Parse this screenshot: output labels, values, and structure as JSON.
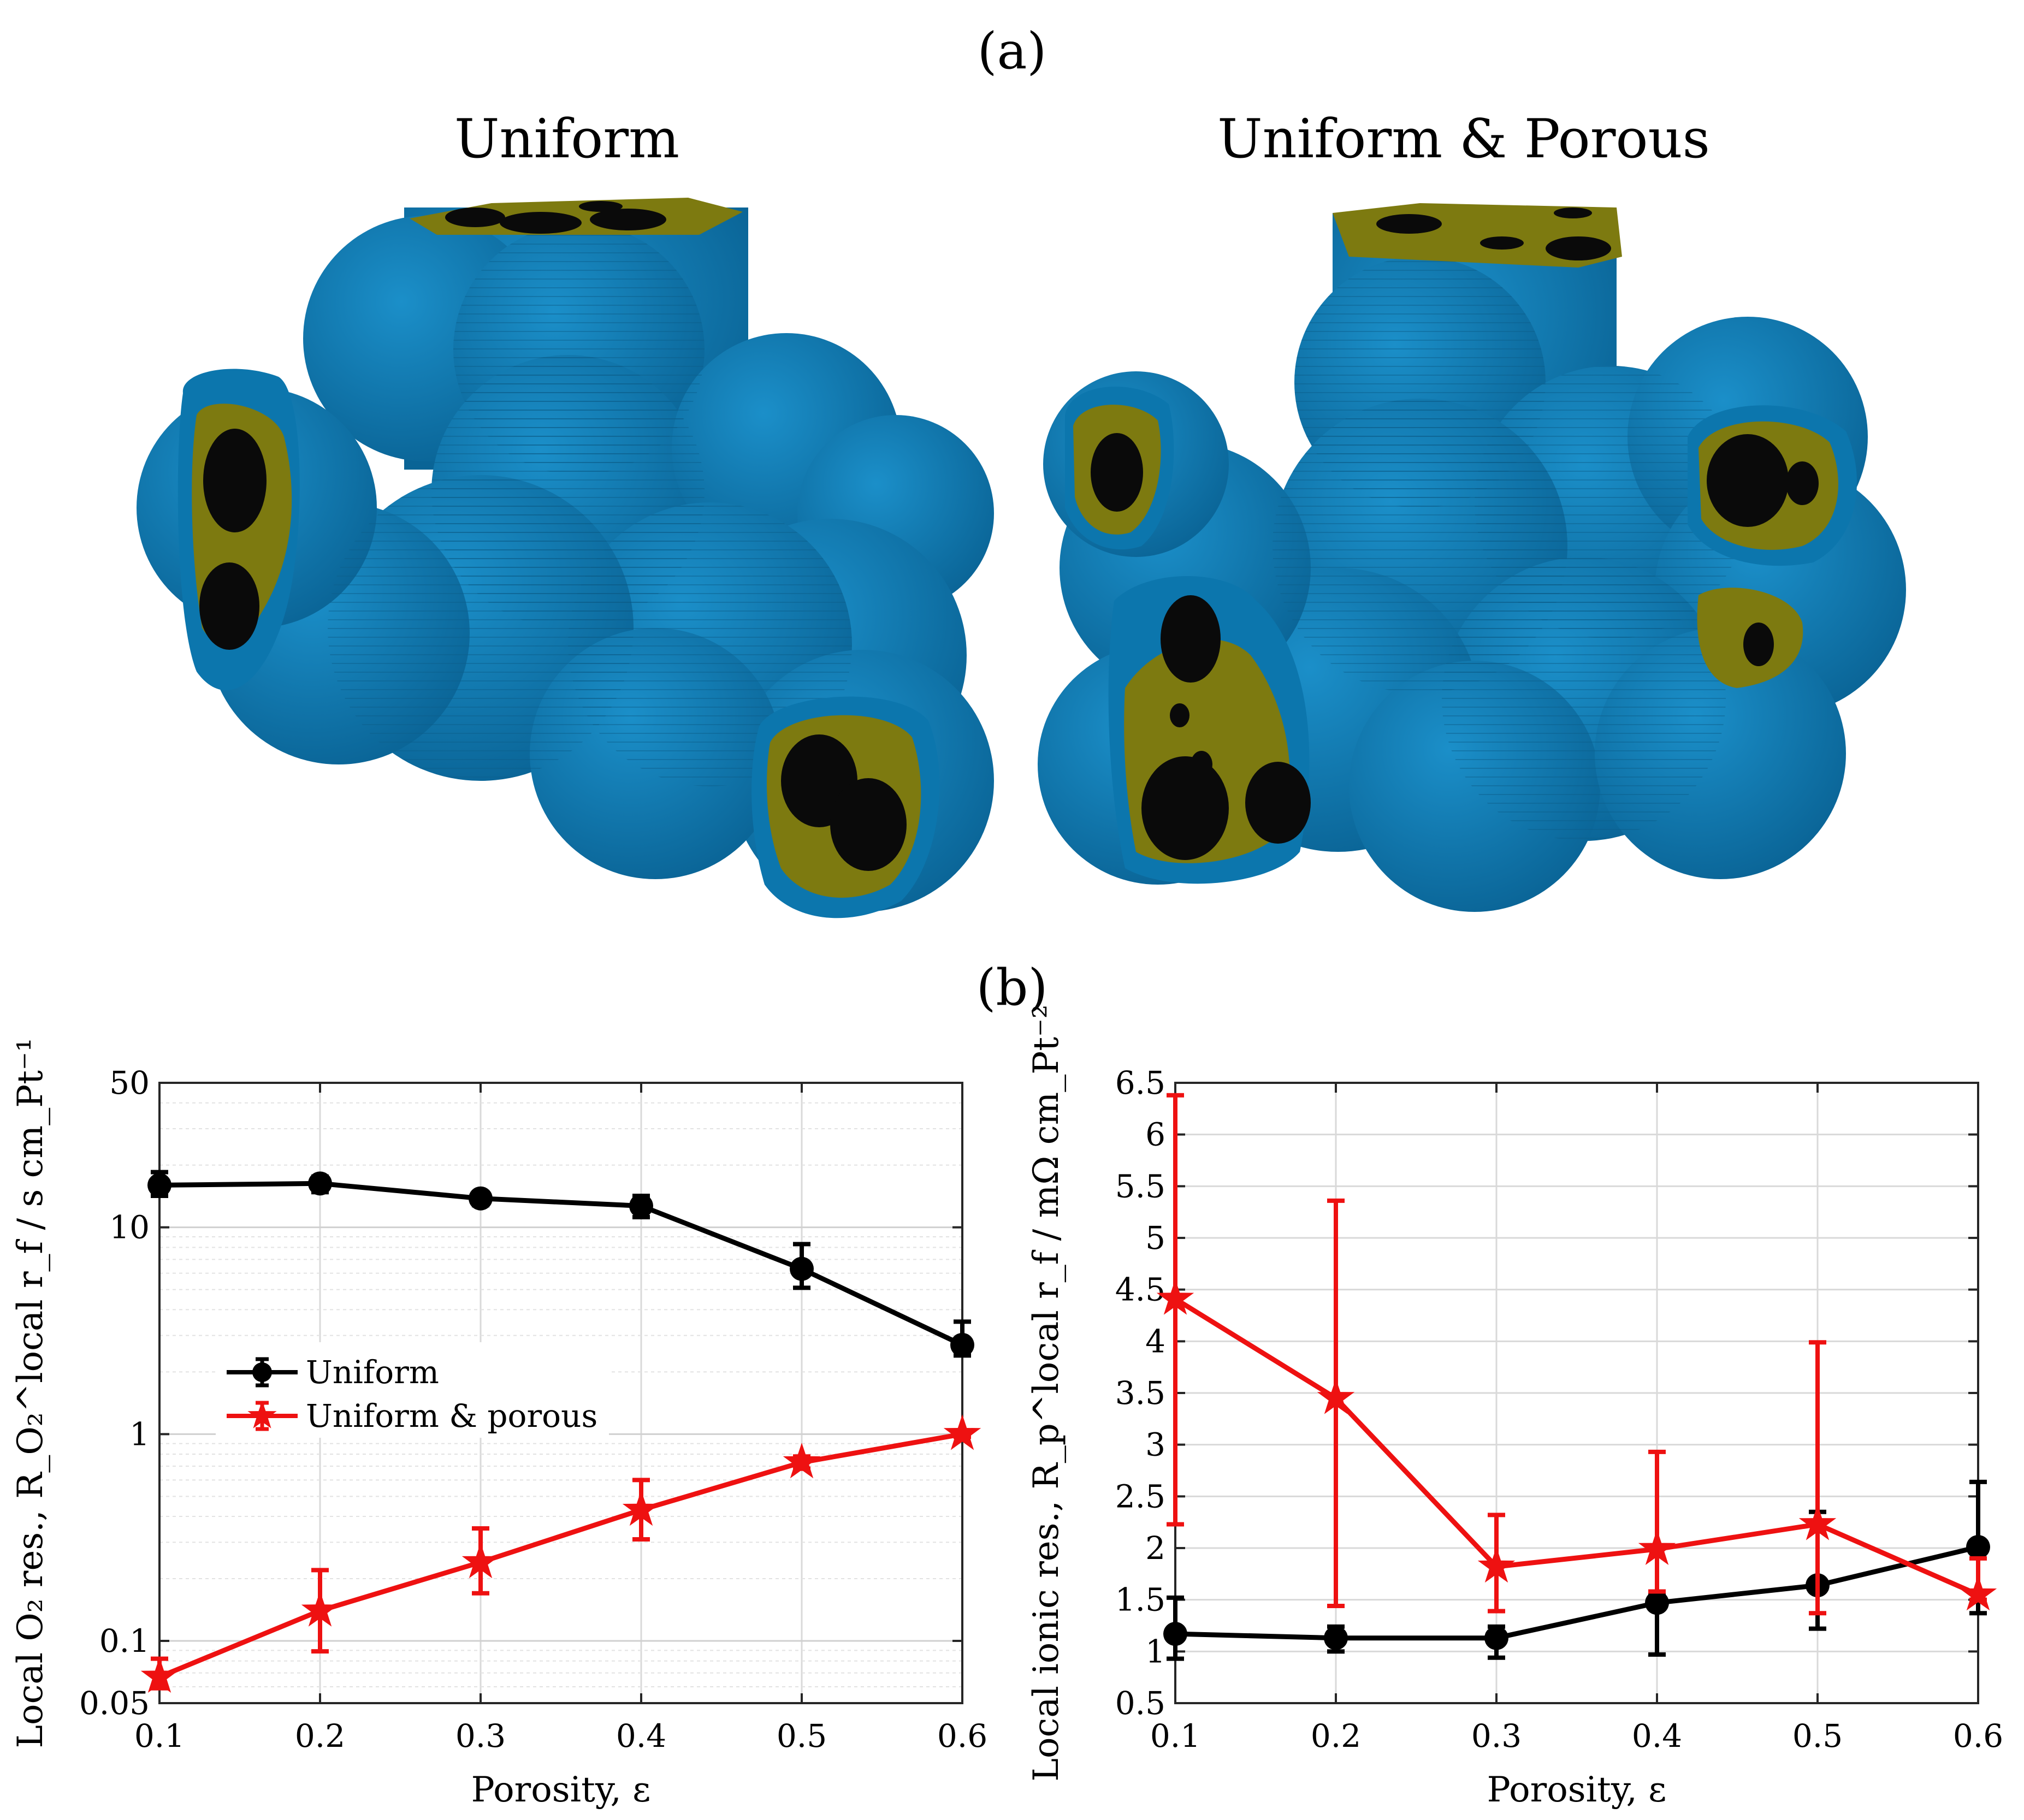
{
  "panel_labels": {
    "a": "(a)",
    "b": "(b)"
  },
  "renders": {
    "left_title": "Uniform",
    "right_title": "Uniform & Porous",
    "colors": {
      "ionomer_surface": "#0c76ad",
      "carbon": "#0a0a0a",
      "platinum_layer": "#7d7a10"
    }
  },
  "chart_data": [
    {
      "type": "line",
      "yscale": "log",
      "xlabel": "Porosity, ε",
      "ylabel": "Local O₂ res., R_O₂^local r_f / s cm_Pt⁻¹",
      "xlim": [
        0.1,
        0.6
      ],
      "ylim": [
        0.05,
        50
      ],
      "xticks": [
        "0.1",
        "0.2",
        "0.3",
        "0.4",
        "0.5",
        "0.6"
      ],
      "yticks": [
        {
          "v": 0.05,
          "label": "0.05"
        },
        {
          "v": 0.1,
          "label": "0.1"
        },
        {
          "v": 1,
          "label": "1"
        },
        {
          "v": 10,
          "label": "10"
        },
        {
          "v": 50,
          "label": "50"
        }
      ],
      "grid": true,
      "legend": "center-left",
      "x": [
        0.1,
        0.2,
        0.3,
        0.4,
        0.5,
        0.6
      ],
      "series": [
        {
          "name": "Uniform",
          "color": "#000000",
          "marker": "circle",
          "values": [
            16,
            16.3,
            13.8,
            12.7,
            6.3,
            2.7
          ],
          "err_low": [
            14.2,
            14.8,
            12.8,
            11.2,
            5.1,
            2.4
          ],
          "err_high": [
            18.5,
            17.6,
            14.8,
            14.2,
            8.3,
            3.5
          ]
        },
        {
          "name": "Uniform & porous",
          "color": "#ee1111",
          "marker": "star",
          "values": [
            0.067,
            0.14,
            0.24,
            0.43,
            0.73,
            1.0
          ],
          "err_low": [
            0.059,
            0.089,
            0.17,
            0.31,
            0.68,
            0.97
          ],
          "err_high": [
            0.082,
            0.22,
            0.35,
            0.6,
            0.78,
            1.03
          ]
        }
      ]
    },
    {
      "type": "line",
      "xlabel": "Porosity, ε",
      "ylabel": "Local ionic res., R_p^local r_f / mΩ cm_Pt⁻²",
      "xlim": [
        0.1,
        0.6
      ],
      "ylim": [
        0.5,
        6.5
      ],
      "xticks": [
        "0.1",
        "0.2",
        "0.3",
        "0.4",
        "0.5",
        "0.6"
      ],
      "yticks": [
        "0.5",
        "1",
        "1.5",
        "2",
        "2.5",
        "3",
        "3.5",
        "4",
        "4.5",
        "5",
        "5.5",
        "6",
        "6.5"
      ],
      "grid": true,
      "x": [
        0.1,
        0.2,
        0.3,
        0.4,
        0.5,
        0.6
      ],
      "series": [
        {
          "name": "Uniform",
          "color": "#000000",
          "marker": "circle",
          "values": [
            1.17,
            1.13,
            1.13,
            1.47,
            1.64,
            2.01
          ],
          "err_low": [
            0.93,
            1.0,
            0.94,
            0.97,
            1.22,
            1.37
          ],
          "err_high": [
            1.52,
            1.24,
            1.24,
            1.56,
            2.35,
            2.64
          ]
        },
        {
          "name": "Uniform & porous",
          "color": "#ee1111",
          "marker": "star",
          "values": [
            4.41,
            3.45,
            1.82,
            1.99,
            2.23,
            1.55
          ],
          "err_low": [
            2.23,
            1.44,
            1.39,
            1.58,
            1.37,
            1.5
          ],
          "err_high": [
            6.38,
            5.36,
            2.32,
            2.93,
            3.99,
            1.9
          ]
        }
      ]
    }
  ]
}
